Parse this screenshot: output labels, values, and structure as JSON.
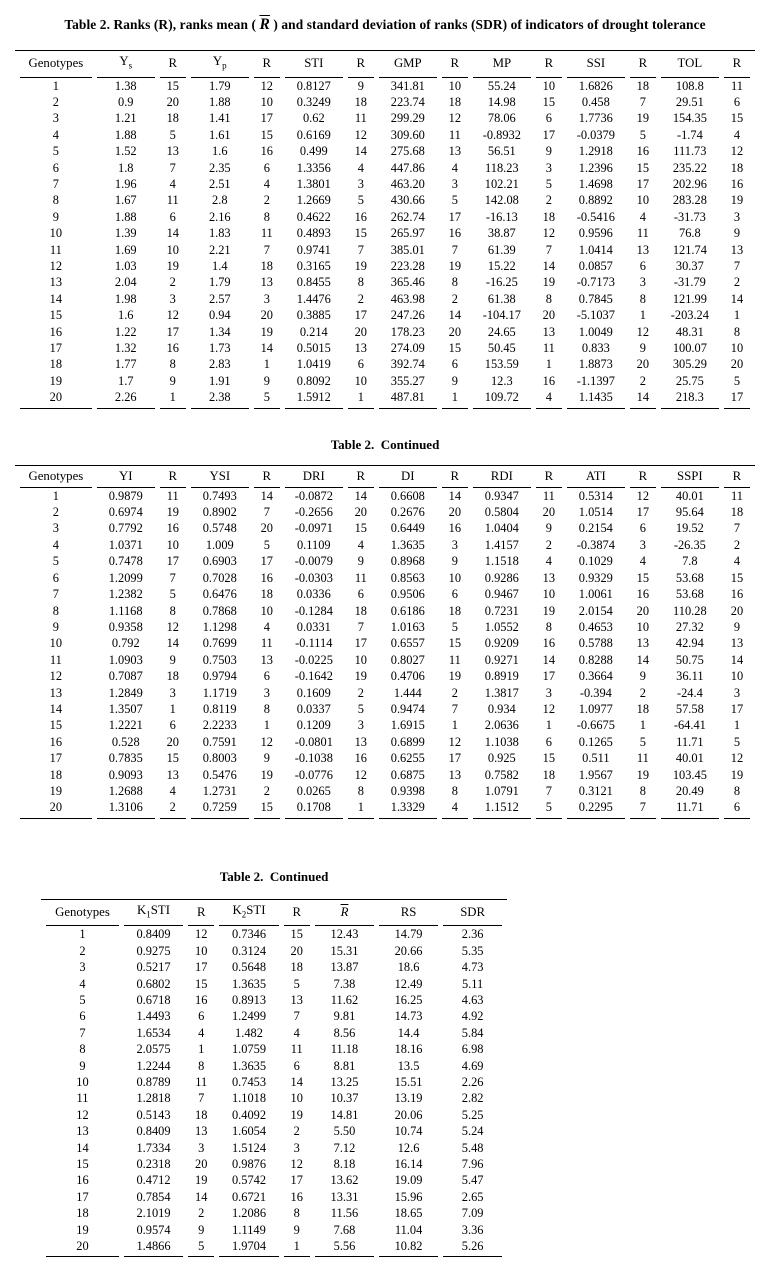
{
  "title": {
    "prefix": "Table 2. Ranks (R), ranks mean ( ",
    "rbar": "R",
    "suffix": " ) and standard deviation of ranks (SDR) of  indicators of drought tolerance"
  },
  "table1": {
    "headers": [
      [
        {
          "t": "Genotypes"
        }
      ],
      [
        {
          "t": "Y"
        },
        {
          "t": "s",
          "s": "sub"
        }
      ],
      [
        {
          "t": "R"
        }
      ],
      [
        {
          "t": "Y"
        },
        {
          "t": "p",
          "s": "sub"
        }
      ],
      [
        {
          "t": "R"
        }
      ],
      [
        {
          "t": "STI"
        }
      ],
      [
        {
          "t": "R"
        }
      ],
      [
        {
          "t": "GMP"
        }
      ],
      [
        {
          "t": "R"
        }
      ],
      [
        {
          "t": "MP"
        }
      ],
      [
        {
          "t": "R"
        }
      ],
      [
        {
          "t": "SSI"
        }
      ],
      [
        {
          "t": "R"
        }
      ],
      [
        {
          "t": "TOL"
        }
      ],
      [
        {
          "t": "R"
        }
      ]
    ],
    "rows": [
      [
        "1",
        "1.38",
        "15",
        "1.79",
        "12",
        "0.8127",
        "9",
        "341.81",
        "10",
        "55.24",
        "10",
        "1.6826",
        "18",
        "108.8",
        "11"
      ],
      [
        "2",
        "0.9",
        "20",
        "1.88",
        "10",
        "0.3249",
        "18",
        "223.74",
        "18",
        "14.98",
        "15",
        "0.458",
        "7",
        "29.51",
        "6"
      ],
      [
        "3",
        "1.21",
        "18",
        "1.41",
        "17",
        "0.62",
        "11",
        "299.29",
        "12",
        "78.06",
        "6",
        "1.7736",
        "19",
        "154.35",
        "15"
      ],
      [
        "4",
        "1.88",
        "5",
        "1.61",
        "15",
        "0.6169",
        "12",
        "309.60",
        "11",
        "-0.8932",
        "17",
        "-0.0379",
        "5",
        "-1.74",
        "4"
      ],
      [
        "5",
        "1.52",
        "13",
        "1.6",
        "16",
        "0.499",
        "14",
        "275.68",
        "13",
        "56.51",
        "9",
        "1.2918",
        "16",
        "111.73",
        "12"
      ],
      [
        "6",
        "1.8",
        "7",
        "2.35",
        "6",
        "1.3356",
        "4",
        "447.86",
        "4",
        "118.23",
        "3",
        "1.2396",
        "15",
        "235.22",
        "18"
      ],
      [
        "7",
        "1.96",
        "4",
        "2.51",
        "4",
        "1.3801",
        "3",
        "463.20",
        "3",
        "102.21",
        "5",
        "1.4698",
        "17",
        "202.96",
        "16"
      ],
      [
        "8",
        "1.67",
        "11",
        "2.8",
        "2",
        "1.2669",
        "5",
        "430.66",
        "5",
        "142.08",
        "2",
        "0.8892",
        "10",
        "283.28",
        "19"
      ],
      [
        "9",
        "1.88",
        "6",
        "2.16",
        "8",
        "0.4622",
        "16",
        "262.74",
        "17",
        "-16.13",
        "18",
        "-0.5416",
        "4",
        "-31.73",
        "3"
      ],
      [
        "10",
        "1.39",
        "14",
        "1.83",
        "11",
        "0.4893",
        "15",
        "265.97",
        "16",
        "38.87",
        "12",
        "0.9596",
        "11",
        "76.8",
        "9"
      ],
      [
        "11",
        "1.69",
        "10",
        "2.21",
        "7",
        "0.9741",
        "7",
        "385.01",
        "7",
        "61.39",
        "7",
        "1.0414",
        "13",
        "121.74",
        "13"
      ],
      [
        "12",
        "1.03",
        "19",
        "1.4",
        "18",
        "0.3165",
        "19",
        "223.28",
        "19",
        "15.22",
        "14",
        "0.0857",
        "6",
        "30.37",
        "7"
      ],
      [
        "13",
        "2.04",
        "2",
        "1.79",
        "13",
        "0.8455",
        "8",
        "365.46",
        "8",
        "-16.25",
        "19",
        "-0.7173",
        "3",
        "-31.79",
        "2"
      ],
      [
        "14",
        "1.98",
        "3",
        "2.57",
        "3",
        "1.4476",
        "2",
        "463.98",
        "2",
        "61.38",
        "8",
        "0.7845",
        "8",
        "121.99",
        "14"
      ],
      [
        "15",
        "1.6",
        "12",
        "0.94",
        "20",
        "0.3885",
        "17",
        "247.26",
        "14",
        "-104.17",
        "20",
        "-5.1037",
        "1",
        "-203.24",
        "1"
      ],
      [
        "16",
        "1.22",
        "17",
        "1.34",
        "19",
        "0.214",
        "20",
        "178.23",
        "20",
        "24.65",
        "13",
        "1.0049",
        "12",
        "48.31",
        "8"
      ],
      [
        "17",
        "1.32",
        "16",
        "1.73",
        "14",
        "0.5015",
        "13",
        "274.09",
        "15",
        "50.45",
        "11",
        "0.833",
        "9",
        "100.07",
        "10"
      ],
      [
        "18",
        "1.77",
        "8",
        "2.83",
        "1",
        "1.0419",
        "6",
        "392.74",
        "6",
        "153.59",
        "1",
        "1.8873",
        "20",
        "305.29",
        "20"
      ],
      [
        "19",
        "1.7",
        "9",
        "1.91",
        "9",
        "0.8092",
        "10",
        "355.27",
        "9",
        "12.3",
        "16",
        "-1.1397",
        "2",
        "25.75",
        "5"
      ],
      [
        "20",
        "2.26",
        "1",
        "2.38",
        "5",
        "1.5912",
        "1",
        "487.81",
        "1",
        "109.72",
        "4",
        "1.1435",
        "14",
        "218.3",
        "17"
      ]
    ]
  },
  "table2": {
    "caption": "Table 2.  Continued",
    "headers": [
      [
        {
          "t": "Genotypes"
        }
      ],
      [
        {
          "t": "YI"
        }
      ],
      [
        {
          "t": "R"
        }
      ],
      [
        {
          "t": "YSI"
        }
      ],
      [
        {
          "t": "R"
        }
      ],
      [
        {
          "t": "DRI"
        }
      ],
      [
        {
          "t": "R"
        }
      ],
      [
        {
          "t": "DI"
        }
      ],
      [
        {
          "t": "R"
        }
      ],
      [
        {
          "t": "RDI"
        }
      ],
      [
        {
          "t": "R"
        }
      ],
      [
        {
          "t": "ATI"
        }
      ],
      [
        {
          "t": "R"
        }
      ],
      [
        {
          "t": "SSPI"
        }
      ],
      [
        {
          "t": "R"
        }
      ]
    ],
    "rows": [
      [
        "1",
        "0.9879",
        "11",
        "0.7493",
        "14",
        "-0.0872",
        "14",
        "0.6608",
        "14",
        "0.9347",
        "11",
        "0.5314",
        "12",
        "40.01",
        "11"
      ],
      [
        "2",
        "0.6974",
        "19",
        "0.8902",
        "7",
        "-0.2656",
        "20",
        "0.2676",
        "20",
        "0.5804",
        "20",
        "1.0514",
        "17",
        "95.64",
        "18"
      ],
      [
        "3",
        "0.7792",
        "16",
        "0.5748",
        "20",
        "-0.0971",
        "15",
        "0.6449",
        "16",
        "1.0404",
        "9",
        "0.2154",
        "6",
        "19.52",
        "7"
      ],
      [
        "4",
        "1.0371",
        "10",
        "1.009",
        "5",
        "0.1109",
        "4",
        "1.3635",
        "3",
        "1.4157",
        "2",
        "-0.3874",
        "3",
        "-26.35",
        "2"
      ],
      [
        "5",
        "0.7478",
        "17",
        "0.6903",
        "17",
        "-0.0079",
        "9",
        "0.8968",
        "9",
        "1.1518",
        "4",
        "0.1029",
        "4",
        "7.8",
        "4"
      ],
      [
        "6",
        "1.2099",
        "7",
        "0.7028",
        "16",
        "-0.0303",
        "11",
        "0.8563",
        "10",
        "0.9286",
        "13",
        "0.9329",
        "15",
        "53.68",
        "15"
      ],
      [
        "7",
        "1.2382",
        "5",
        "0.6476",
        "18",
        "0.0336",
        "6",
        "0.9506",
        "6",
        "0.9467",
        "10",
        "1.0061",
        "16",
        "53.68",
        "16"
      ],
      [
        "8",
        "1.1168",
        "8",
        "0.7868",
        "10",
        "-0.1284",
        "18",
        "0.6186",
        "18",
        "0.7231",
        "19",
        "2.0154",
        "20",
        "110.28",
        "20"
      ],
      [
        "9",
        "0.9358",
        "12",
        "1.1298",
        "4",
        "0.0331",
        "7",
        "1.0163",
        "5",
        "1.0552",
        "8",
        "0.4653",
        "10",
        "27.32",
        "9"
      ],
      [
        "10",
        "0.792",
        "14",
        "0.7699",
        "11",
        "-0.1114",
        "17",
        "0.6557",
        "15",
        "0.9209",
        "16",
        "0.5788",
        "13",
        "42.94",
        "13"
      ],
      [
        "11",
        "1.0903",
        "9",
        "0.7503",
        "13",
        "-0.0225",
        "10",
        "0.8027",
        "11",
        "0.9271",
        "14",
        "0.8288",
        "14",
        "50.75",
        "14"
      ],
      [
        "12",
        "0.7087",
        "18",
        "0.9794",
        "6",
        "-0.1642",
        "19",
        "0.4706",
        "19",
        "0.8919",
        "17",
        "0.3664",
        "9",
        "36.11",
        "10"
      ],
      [
        "13",
        "1.2849",
        "3",
        "1.1719",
        "3",
        "0.1609",
        "2",
        "1.444",
        "2",
        "1.3817",
        "3",
        "-0.394",
        "2",
        "-24.4",
        "3"
      ],
      [
        "14",
        "1.3507",
        "1",
        "0.8119",
        "8",
        "0.0337",
        "5",
        "0.9474",
        "7",
        "0.934",
        "12",
        "1.0977",
        "18",
        "57.58",
        "17"
      ],
      [
        "15",
        "1.2221",
        "6",
        "2.2233",
        "1",
        "0.1209",
        "3",
        "1.6915",
        "1",
        "2.0636",
        "1",
        "-0.6675",
        "1",
        "-64.41",
        "1"
      ],
      [
        "16",
        "0.528",
        "20",
        "0.7591",
        "12",
        "-0.0801",
        "13",
        "0.6899",
        "12",
        "1.1038",
        "6",
        "0.1265",
        "5",
        "11.71",
        "5"
      ],
      [
        "17",
        "0.7835",
        "15",
        "0.8003",
        "9",
        "-0.1038",
        "16",
        "0.6255",
        "17",
        "0.925",
        "15",
        "0.511",
        "11",
        "40.01",
        "12"
      ],
      [
        "18",
        "0.9093",
        "13",
        "0.5476",
        "19",
        "-0.0776",
        "12",
        "0.6875",
        "13",
        "0.7582",
        "18",
        "1.9567",
        "19",
        "103.45",
        "19"
      ],
      [
        "19",
        "1.2688",
        "4",
        "1.2731",
        "2",
        "0.0265",
        "8",
        "0.9398",
        "8",
        "1.0791",
        "7",
        "0.3121",
        "8",
        "20.49",
        "8"
      ],
      [
        "20",
        "1.3106",
        "2",
        "0.7259",
        "15",
        "0.1708",
        "1",
        "1.3329",
        "4",
        "1.1512",
        "5",
        "0.2295",
        "7",
        "11.71",
        "6"
      ]
    ]
  },
  "table3": {
    "caption": "Table 2.  Continued",
    "headers": [
      [
        {
          "t": "Genotypes"
        }
      ],
      [
        {
          "t": "K"
        },
        {
          "t": "1",
          "s": "sub"
        },
        {
          "t": "STI"
        }
      ],
      [
        {
          "t": "R"
        }
      ],
      [
        {
          "t": "K"
        },
        {
          "t": "2",
          "s": "sub"
        },
        {
          "t": "STI"
        }
      ],
      [
        {
          "t": "R"
        }
      ],
      [
        {
          "t": "R",
          "s": "over"
        }
      ],
      [
        {
          "t": "RS"
        }
      ],
      [
        {
          "t": "SDR"
        }
      ]
    ],
    "rows": [
      [
        "1",
        "0.8409",
        "12",
        "0.7346",
        "15",
        "12.43",
        "14.79",
        "2.36"
      ],
      [
        "2",
        "0.9275",
        "10",
        "0.3124",
        "20",
        "15.31",
        "20.66",
        "5.35"
      ],
      [
        "3",
        "0.5217",
        "17",
        "0.5648",
        "18",
        "13.87",
        "18.6",
        "4.73"
      ],
      [
        "4",
        "0.6802",
        "15",
        "1.3635",
        "5",
        "7.38",
        "12.49",
        "5.11"
      ],
      [
        "5",
        "0.6718",
        "16",
        "0.8913",
        "13",
        "11.62",
        "16.25",
        "4.63"
      ],
      [
        "6",
        "1.4493",
        "6",
        "1.2499",
        "7",
        "9.81",
        "14.73",
        "4.92"
      ],
      [
        "7",
        "1.6534",
        "4",
        "1.482",
        "4",
        "8.56",
        "14.4",
        "5.84"
      ],
      [
        "8",
        "2.0575",
        "1",
        "1.0759",
        "11",
        "11.18",
        "18.16",
        "6.98"
      ],
      [
        "9",
        "1.2244",
        "8",
        "1.3635",
        "6",
        "8.81",
        "13.5",
        "4.69"
      ],
      [
        "10",
        "0.8789",
        "11",
        "0.7453",
        "14",
        "13.25",
        "15.51",
        "2.26"
      ],
      [
        "11",
        "1.2818",
        "7",
        "1.1018",
        "10",
        "10.37",
        "13.19",
        "2.82"
      ],
      [
        "12",
        "0.5143",
        "18",
        "0.4092",
        "19",
        "14.81",
        "20.06",
        "5.25"
      ],
      [
        "13",
        "0.8409",
        "13",
        "1.6054",
        "2",
        "5.50",
        "10.74",
        "5.24"
      ],
      [
        "14",
        "1.7334",
        "3",
        "1.5124",
        "3",
        "7.12",
        "12.6",
        "5.48"
      ],
      [
        "15",
        "0.2318",
        "20",
        "0.9876",
        "12",
        "8.18",
        "16.14",
        "7.96"
      ],
      [
        "16",
        "0.4712",
        "19",
        "0.5742",
        "17",
        "13.62",
        "19.09",
        "5.47"
      ],
      [
        "17",
        "0.7854",
        "14",
        "0.6721",
        "16",
        "13.31",
        "15.96",
        "2.65"
      ],
      [
        "18",
        "2.1019",
        "2",
        "1.2086",
        "8",
        "11.56",
        "18.65",
        "7.09"
      ],
      [
        "19",
        "0.9574",
        "9",
        "1.1149",
        "9",
        "7.68",
        "11.04",
        "3.36"
      ],
      [
        "20",
        "1.4866",
        "5",
        "1.9704",
        "1",
        "5.56",
        "10.82",
        "5.26"
      ]
    ]
  }
}
